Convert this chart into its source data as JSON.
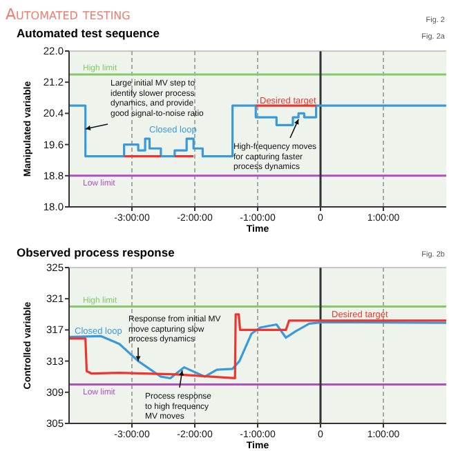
{
  "chart_data": [
    {
      "type": "step",
      "title": "Automated test sequence",
      "xlabel": "Time",
      "ylabel": "Manipulated variable",
      "xlim": [
        -4,
        2
      ],
      "xticks": [
        {
          "value": -3,
          "label": "-3:00:00"
        },
        {
          "value": -2,
          "label": "-2:00:00"
        },
        {
          "value": -1,
          "label": "-1:00:00"
        },
        0,
        {
          "value": 1,
          "label": "1:00:00"
        }
      ],
      "ylim": [
        18.0,
        22.0
      ],
      "yticks": [
        {
          "value": 18,
          "label": "18.0"
        },
        18.8,
        19.6,
        20.4,
        21.2,
        {
          "value": 22,
          "label": "22.0"
        }
      ],
      "grid": "x",
      "legend": false,
      "series": [
        {
          "name": "Closed loop",
          "color": "#3a9ad9",
          "x": [
            -4,
            -3.74,
            -3.125,
            -2.9,
            -2.79,
            -2.72,
            -2.54,
            -2.32,
            -2.13,
            -2.02,
            -1.875,
            -1.4,
            -1.03,
            -0.7,
            -0.44,
            -0.35,
            -0.26,
            -0.07,
            2.0
          ],
          "values": [
            20.6,
            19.3,
            19.6,
            19.45,
            19.75,
            19.5,
            19.3,
            19.45,
            19.75,
            19.5,
            19.3,
            20.6,
            20.3,
            20.1,
            20.3,
            20.4,
            20.3,
            20.6,
            20.6
          ]
        },
        {
          "name": "Desired target",
          "color": "#f0332e",
          "type": "line",
          "x": [
            -3.125,
            -2.54,
            -2.5,
            -2.32,
            -2.02,
            -1.9,
            -1.03,
            -0.07
          ],
          "values": [
            19.3,
            19.3,
            null,
            19.3,
            19.3,
            null,
            20.6,
            20.6
          ]
        }
      ],
      "ref_lines": [
        {
          "axis": "y",
          "value": 21.4,
          "label": "High limit",
          "color": "#86c96a"
        },
        {
          "axis": "y",
          "value": 18.8,
          "label": "Low limit",
          "color": "#b04fc0"
        },
        {
          "axis": "x",
          "value": 0,
          "color": "#333333"
        }
      ],
      "annotations": [
        "Automated testing",
        "Fig. 2",
        "Fig. 2a",
        {
          "text": "Large initial MV step to\nidentify slower process\ndynamics, and provide\ngood signal-to-noise ratio",
          "x": -3.74,
          "y": 20.0
        },
        {
          "text": "High-frequency moves\nfor capturing faster\nprocess dynamics",
          "x": -0.35,
          "y": 20.25
        }
      ]
    },
    {
      "type": "line",
      "title": "Observed process response",
      "xlabel": "Time",
      "ylabel": "Controlled variable",
      "xlim": [
        -4,
        2
      ],
      "xticks": [
        {
          "value": -3,
          "label": "-3:00:00"
        },
        {
          "value": -2,
          "label": "-2:00:00"
        },
        {
          "value": -1,
          "label": "-1:00:00"
        },
        0,
        {
          "value": 1,
          "label": "1:00:00"
        }
      ],
      "ylim": [
        305,
        325
      ],
      "yticks": [
        305,
        309,
        313,
        317,
        321,
        325
      ],
      "grid": "x",
      "legend": false,
      "series": [
        {
          "name": "Closed loop",
          "color": "#3a9ad9",
          "x": [
            -4,
            -3.49,
            -3.2,
            -2.9,
            -2.54,
            -2.39,
            -2.17,
            -1.84,
            -1.65,
            -1.4,
            -1.29,
            -1.1,
            -0.96,
            -0.7,
            -0.55,
            -0.4,
            -0.18,
            0.04,
            2.0
          ],
          "values": [
            316.1,
            316.2,
            315.2,
            313,
            311,
            310.8,
            312.2,
            311,
            311.9,
            312,
            313,
            316.5,
            317.3,
            317.7,
            316,
            316.8,
            317.8,
            318,
            317.9
          ]
        },
        {
          "name": "Desired target",
          "color": "#f0332e",
          "x": [
            -4,
            -3.74,
            -3.72,
            -3.64,
            -3.2,
            -2.3,
            -1.36,
            -1.35,
            -1.3,
            -1.28,
            -0.55,
            -0.5,
            2.0
          ],
          "values": [
            315.9,
            315.9,
            311.7,
            311.4,
            311.5,
            311.3,
            310.8,
            319,
            319,
            317,
            317,
            318.2,
            318.2
          ]
        }
      ],
      "ref_lines": [
        {
          "axis": "y",
          "value": 320,
          "label": "High limit",
          "color": "#86c96a"
        },
        {
          "axis": "y",
          "value": 310,
          "label": "Low limit",
          "color": "#b04fc0"
        },
        {
          "axis": "x",
          "value": 0,
          "color": "#333333"
        }
      ],
      "annotations": [
        "Fig. 2b",
        {
          "text": "Response from initial MV\nmove capturing slow\nprocess dynamics",
          "x": -2.9,
          "y": 313
        },
        {
          "text": "Process response\nto high frequency\nMV moves",
          "x": -2.2,
          "y": 311.8
        }
      ]
    }
  ]
}
